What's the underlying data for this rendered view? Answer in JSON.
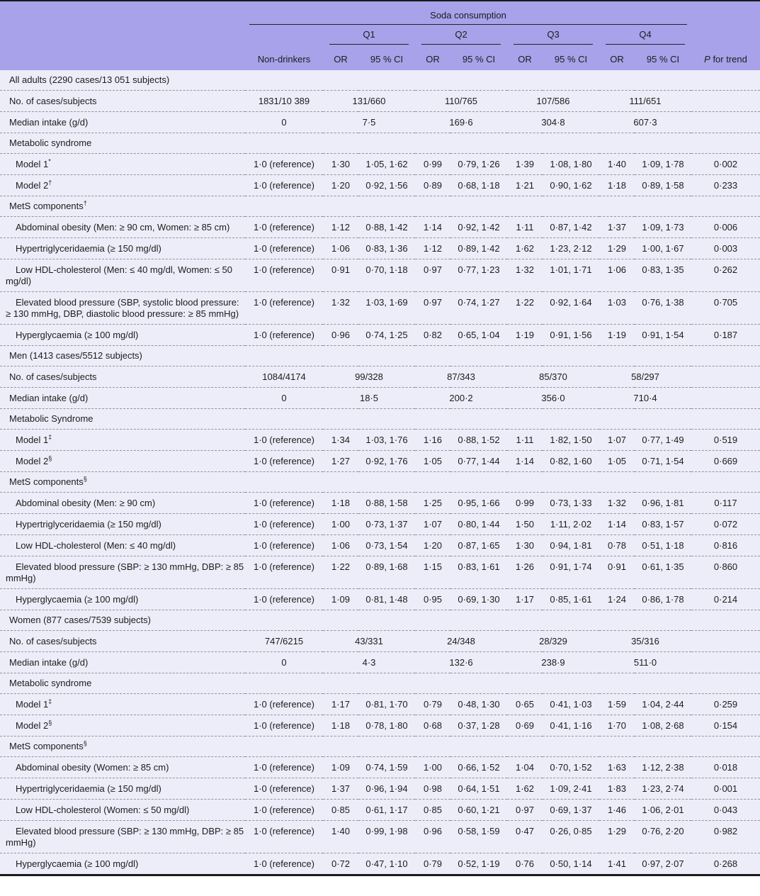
{
  "colors": {
    "header_bg": "#a7a2e9",
    "body_bg": "#ecedf8",
    "border_dark": "#1a1a1a",
    "dash": "#949494",
    "text": "#1c1c1c"
  },
  "table": {
    "spanner": "Soda consumption",
    "quartiles": [
      "Q1",
      "Q2",
      "Q3",
      "Q4"
    ],
    "col_headers": {
      "nondrinkers": "Non-drinkers",
      "or": "OR",
      "ci": "95 % CI",
      "p_italic": "P",
      "p_rest": " for trend"
    },
    "rows": [
      {
        "t": "section",
        "label": "All adults (2290 cases/13 051 subjects)",
        "sup": ""
      },
      {
        "t": "counts",
        "label": "No. of cases/subjects",
        "nd": "1831/10 389",
        "q": [
          "131/660",
          "110/765",
          "107/586",
          "111/651"
        ]
      },
      {
        "t": "counts",
        "label": "Median intake (g/d)",
        "nd": "0",
        "q": [
          "7·5",
          "169·6",
          "304·8",
          "607·3"
        ]
      },
      {
        "t": "section",
        "label": "Metabolic syndrome",
        "sup": ""
      },
      {
        "t": "data",
        "label": "Model 1",
        "sup": "*",
        "nd": "1·0 (reference)",
        "v": [
          "1·30",
          "1·05, 1·62",
          "0·99",
          "0·79, 1·26",
          "1·39",
          "1·08, 1·80",
          "1·40",
          "1·09, 1·78"
        ],
        "p": "0·002"
      },
      {
        "t": "data",
        "label": "Model 2",
        "sup": "†",
        "nd": "1·0 (reference)",
        "v": [
          "1·20",
          "0·92, 1·56",
          "0·89",
          "0·68, 1·18",
          "1·21",
          "0·90, 1·62",
          "1·18",
          "0·89, 1·58"
        ],
        "p": "0·233"
      },
      {
        "t": "section",
        "label": "MetS components",
        "sup": "†"
      },
      {
        "t": "data",
        "label": "Abdominal obesity (Men: ≥ 90 cm, Women: ≥ 85 cm)",
        "sup": "",
        "nd": "1·0 (reference)",
        "v": [
          "1·12",
          "0·88, 1·42",
          "1·14",
          "0·92, 1·42",
          "1·11",
          "0·87, 1·42",
          "1·37",
          "1·09, 1·73"
        ],
        "p": "0·006"
      },
      {
        "t": "data",
        "label": "Hypertriglyceridaemia (≥ 150 mg/dl)",
        "sup": "",
        "nd": "1·0 (reference)",
        "v": [
          "1·06",
          "0·83, 1·36",
          "1·12",
          "0·89, 1·42",
          "1·62",
          "1·23, 2·12",
          "1·29",
          "1·00, 1·67"
        ],
        "p": "0·003"
      },
      {
        "t": "data",
        "label": "Low HDL-cholesterol (Men: ≤ 40 mg/dl, Women: ≤ 50 mg/dl)",
        "sup": "",
        "nd": "1·0 (reference)",
        "v": [
          "0·91",
          "0·70, 1·18",
          "0·97",
          "0·77, 1·23",
          "1·32",
          "1·01, 1·71",
          "1·06",
          "0·83, 1·35"
        ],
        "p": "0·262"
      },
      {
        "t": "data",
        "label": "Elevated blood pressure (SBP, systolic blood pressure: ≥ 130 mmHg, DBP, diastolic blood pressure: ≥ 85 mmHg)",
        "sup": "",
        "nd": "1·0 (reference)",
        "v": [
          "1·32",
          "1·03, 1·69",
          "0·97",
          "0·74, 1·27",
          "1·22",
          "0·92, 1·64",
          "1·03",
          "0·76, 1·38"
        ],
        "p": "0·705"
      },
      {
        "t": "data",
        "label": "Hyperglycaemia (≥ 100 mg/dl)",
        "sup": "",
        "nd": "1·0 (reference)",
        "v": [
          "0·96",
          "0·74, 1·25",
          "0·82",
          "0·65, 1·04",
          "1·19",
          "0·91, 1·56",
          "1·19",
          "0·91, 1·54"
        ],
        "p": "0·187"
      },
      {
        "t": "section",
        "label": "Men (1413 cases/5512 subjects)",
        "sup": ""
      },
      {
        "t": "counts",
        "label": "No. of cases/subjects",
        "nd": "1084/4174",
        "q": [
          "99/328",
          "87/343",
          "85/370",
          "58/297"
        ]
      },
      {
        "t": "counts",
        "label": "Median intake (g/d)",
        "nd": "0",
        "q": [
          "18·5",
          "200·2",
          "356·0",
          "710·4"
        ]
      },
      {
        "t": "section",
        "label": "Metabolic Syndrome",
        "sup": ""
      },
      {
        "t": "data",
        "label": "Model 1",
        "sup": "‡",
        "nd": "1·0 (reference)",
        "v": [
          "1·34",
          "1·03, 1·76",
          "1·16",
          "0·88, 1·52",
          "1·11",
          "1·82, 1·50",
          "1·07",
          "0·77, 1·49"
        ],
        "p": "0·519"
      },
      {
        "t": "data",
        "label": "Model 2",
        "sup": "§",
        "nd": "1·0 (reference)",
        "v": [
          "1·27",
          "0·92, 1·76",
          "1·05",
          "0·77, 1·44",
          "1·14",
          "0·82, 1·60",
          "1·05",
          "0·71, 1·54"
        ],
        "p": "0·669"
      },
      {
        "t": "section",
        "label": "MetS components",
        "sup": "§"
      },
      {
        "t": "data",
        "label": "Abdominal obesity (Men: ≥ 90 cm)",
        "sup": "",
        "nd": "1·0 (reference)",
        "v": [
          "1·18",
          "0·88, 1·58",
          "1·25",
          "0·95, 1·66",
          "0·99",
          "0·73, 1·33",
          "1·32",
          "0·96, 1·81"
        ],
        "p": "0·117"
      },
      {
        "t": "data",
        "label": "Hypertriglyceridaemia (≥ 150 mg/dl)",
        "sup": "",
        "nd": "1·0 (reference)",
        "v": [
          "1·00",
          "0·73, 1·37",
          "1·07",
          "0·80, 1·44",
          "1·50",
          "1·11, 2·02",
          "1·14",
          "0·83, 1·57"
        ],
        "p": "0·072"
      },
      {
        "t": "data",
        "label": "Low HDL-cholesterol (Men: ≤ 40 mg/dl)",
        "sup": "",
        "nd": "1·0 (reference)",
        "v": [
          "1·06",
          "0·73, 1·54",
          "1·20",
          "0·87, 1·65",
          "1·30",
          "0·94, 1·81",
          "0·78",
          "0·51, 1·18"
        ],
        "p": "0·816"
      },
      {
        "t": "data",
        "label": "Elevated blood pressure (SBP: ≥ 130 mmHg, DBP: ≥ 85 mmHg)",
        "sup": "",
        "nd": "1·0 (reference)",
        "v": [
          "1·22",
          "0·89, 1·68",
          "1·15",
          "0·83, 1·61",
          "1·26",
          "0·91, 1·74",
          "0·91",
          "0·61, 1·35"
        ],
        "p": "0·860"
      },
      {
        "t": "data",
        "label": "Hyperglycaemia (≥ 100 mg/dl)",
        "sup": "",
        "nd": "1·0 (reference)",
        "v": [
          "1·09",
          "0·81, 1·48",
          "0·95",
          "0·69, 1·30",
          "1·17",
          "0·85, 1·61",
          "1·24",
          "0·86, 1·78"
        ],
        "p": "0·214"
      },
      {
        "t": "section",
        "label": "Women (877 cases/7539 subjects)",
        "sup": ""
      },
      {
        "t": "counts",
        "label": "No. of cases/subjects",
        "nd": "747/6215",
        "q": [
          "43/331",
          "24/348",
          "28/329",
          "35/316"
        ]
      },
      {
        "t": "counts",
        "label": "Median intake (g/d)",
        "nd": "0",
        "q": [
          "4·3",
          "132·6",
          "238·9",
          "511·0"
        ]
      },
      {
        "t": "section",
        "label": "Metabolic syndrome",
        "sup": ""
      },
      {
        "t": "data",
        "label": "Model 1",
        "sup": "‡",
        "nd": "1·0 (reference)",
        "v": [
          "1·17",
          "0·81, 1·70",
          "0·79",
          "0·48, 1·30",
          "0·65",
          "0·41, 1·03",
          "1·59",
          "1·04, 2·44"
        ],
        "p": "0·259"
      },
      {
        "t": "data",
        "label": "Model 2",
        "sup": "§",
        "nd": "1·0 (reference)",
        "v": [
          "1·18",
          "0·78, 1·80",
          "0·68",
          "0·37, 1·28",
          "0·69",
          "0·41, 1·16",
          "1·70",
          "1·08, 2·68"
        ],
        "p": "0·154"
      },
      {
        "t": "section",
        "label": "MetS components",
        "sup": "§"
      },
      {
        "t": "data",
        "label": "Abdominal obesity (Women: ≥ 85 cm)",
        "sup": "",
        "nd": "1·0 (reference)",
        "v": [
          "1·09",
          "0·74, 1·59",
          "1·00",
          "0·66, 1·52",
          "1·04",
          "0·70, 1·52",
          "1·63",
          "1·12, 2·38"
        ],
        "p": "0·018"
      },
      {
        "t": "data",
        "label": "Hypertriglyceridaemia (≥ 150 mg/dl)",
        "sup": "",
        "nd": "1·0 (reference)",
        "v": [
          "1·37",
          "0·96, 1·94",
          "0·98",
          "0·64, 1·51",
          "1·62",
          "1·09, 2·41",
          "1·83",
          "1·23, 2·74"
        ],
        "p": "0·001"
      },
      {
        "t": "data",
        "label": "Low HDL-cholesterol (Women: ≤ 50 mg/dl)",
        "sup": "",
        "nd": "1·0 (reference)",
        "v": [
          "0·85",
          "0·61, 1·17",
          "0·85",
          "0·60, 1·21",
          "0·97",
          "0·69, 1·37",
          "1·46",
          "1·06, 2·01"
        ],
        "p": "0·043"
      },
      {
        "t": "data",
        "label": "Elevated blood pressure (SBP: ≥ 130 mmHg, DBP: ≥ 85 mmHg)",
        "sup": "",
        "nd": "1·0 (reference)",
        "v": [
          "1·40",
          "0·99, 1·98",
          "0·96",
          "0·58, 1·59",
          "0·47",
          "0·26, 0·85",
          "1·29",
          "0·76, 2·20"
        ],
        "p": "0·982"
      },
      {
        "t": "data",
        "label": "Hyperglycaemia (≥ 100 mg/dl)",
        "sup": "",
        "nd": "1·0 (reference)",
        "v": [
          "0·72",
          "0·47, 1·10",
          "0·79",
          "0·52, 1·19",
          "0·76",
          "0·50, 1·14",
          "1·41",
          "0·97, 2·07"
        ],
        "p": "0·268"
      }
    ]
  }
}
